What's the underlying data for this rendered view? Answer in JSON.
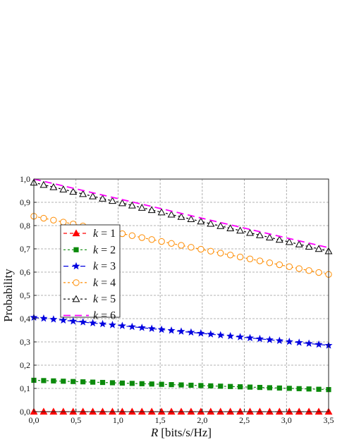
{
  "chart_data": {
    "type": "line",
    "title": "",
    "xlabel": "[bits/s/Hz]",
    "xlabel_var": "R",
    "ylabel": "Probability",
    "xlim": [
      0,
      3.5
    ],
    "ylim": [
      0,
      1.0
    ],
    "x_ticks": [
      0,
      0.5,
      1.0,
      1.5,
      2.0,
      2.5,
      3.0,
      3.5
    ],
    "x_tick_labels": [
      "0,0",
      "0,5",
      "1,0",
      "1,5",
      "2,0",
      "2,5",
      "3,0",
      "3,5"
    ],
    "y_ticks": [
      0,
      0.1,
      0.2,
      0.3,
      0.4,
      0.5,
      0.6,
      0.7,
      0.8,
      0.9,
      1.0
    ],
    "y_tick_labels": [
      "0,0",
      "0,1",
      "0,2",
      "0,3",
      "0,4",
      "0,5",
      "0,6",
      "0,7",
      "0,8",
      "0,9",
      "1,0"
    ],
    "grid": true,
    "legend_position": "left-center",
    "series": [
      {
        "name": "k = 1",
        "label_var": "k",
        "label_value": "1",
        "color": "#ff0000",
        "marker": "triangle-filled",
        "dash": "5,4",
        "x": [
          0,
          3.5
        ],
        "y": [
          0.0,
          0.0
        ],
        "points": 31
      },
      {
        "name": "k = 2",
        "label_var": "k",
        "label_value": "2",
        "color": "#0b8a0b",
        "marker": "square-filled",
        "dash": "3,3",
        "x": [
          0,
          3.5
        ],
        "y": [
          0.135,
          0.095
        ],
        "points": 31
      },
      {
        "name": "k = 3",
        "label_var": "k",
        "label_value": "3",
        "color": "#0000e0",
        "marker": "star-filled",
        "dash": "7,5",
        "x": [
          0,
          3.5
        ],
        "y": [
          0.405,
          0.285
        ],
        "points": 31
      },
      {
        "name": "k = 4",
        "label_var": "k",
        "label_value": "4",
        "color": "#ff8c00",
        "marker": "circle-open",
        "dash": "3,3",
        "x": [
          0,
          3.5
        ],
        "y": [
          0.84,
          0.59
        ],
        "points": 31
      },
      {
        "name": "k = 5",
        "label_var": "k",
        "label_value": "5",
        "color": "#000000",
        "marker": "triangle-open",
        "dash": "3,3",
        "x": [
          0,
          3.5
        ],
        "y": [
          0.985,
          0.69
        ],
        "points": 31
      },
      {
        "name": "k = 6",
        "label_var": "k",
        "label_value": "6",
        "color": "#ff00ff",
        "marker": "none",
        "dash": "10,6",
        "x": [
          0,
          3.5
        ],
        "y": [
          1.0,
          0.705
        ],
        "points": 0
      }
    ]
  }
}
